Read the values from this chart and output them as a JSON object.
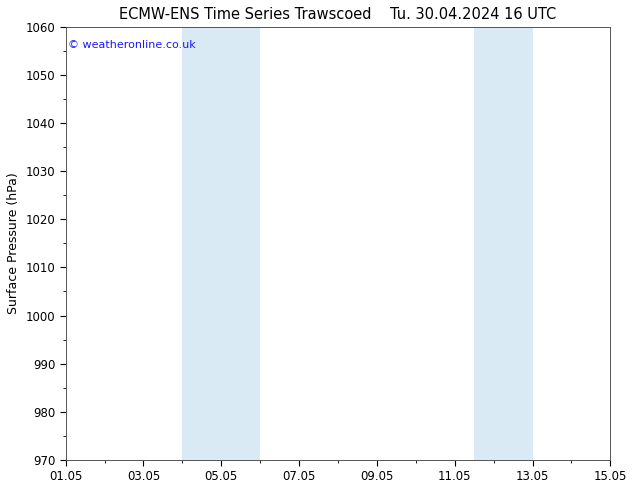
{
  "title_left": "ECMW-ENS Time Series Trawscoed",
  "title_right": "Tu. 30.04.2024 16 UTC",
  "ylabel": "Surface Pressure (hPa)",
  "ylim": [
    970,
    1060
  ],
  "ytick_step": 10,
  "x_start_days": 0,
  "x_end_days": 14,
  "xtick_labels": [
    "01.05",
    "03.05",
    "05.05",
    "07.05",
    "09.05",
    "11.05",
    "13.05",
    "15.05"
  ],
  "xtick_positions_days": [
    0,
    2,
    4,
    6,
    8,
    10,
    12,
    14
  ],
  "shaded_bands": [
    {
      "x_start_days": 3.0,
      "x_end_days": 5.0
    },
    {
      "x_start_days": 10.5,
      "x_end_days": 12.0
    }
  ],
  "band_color": "#daeaf5",
  "watermark": "© weatheronline.co.uk",
  "watermark_color": "#1a1aff",
  "background_color": "#ffffff",
  "plot_bg_color": "#ffffff",
  "title_fontsize": 10.5,
  "axis_label_fontsize": 9,
  "tick_fontsize": 8.5
}
